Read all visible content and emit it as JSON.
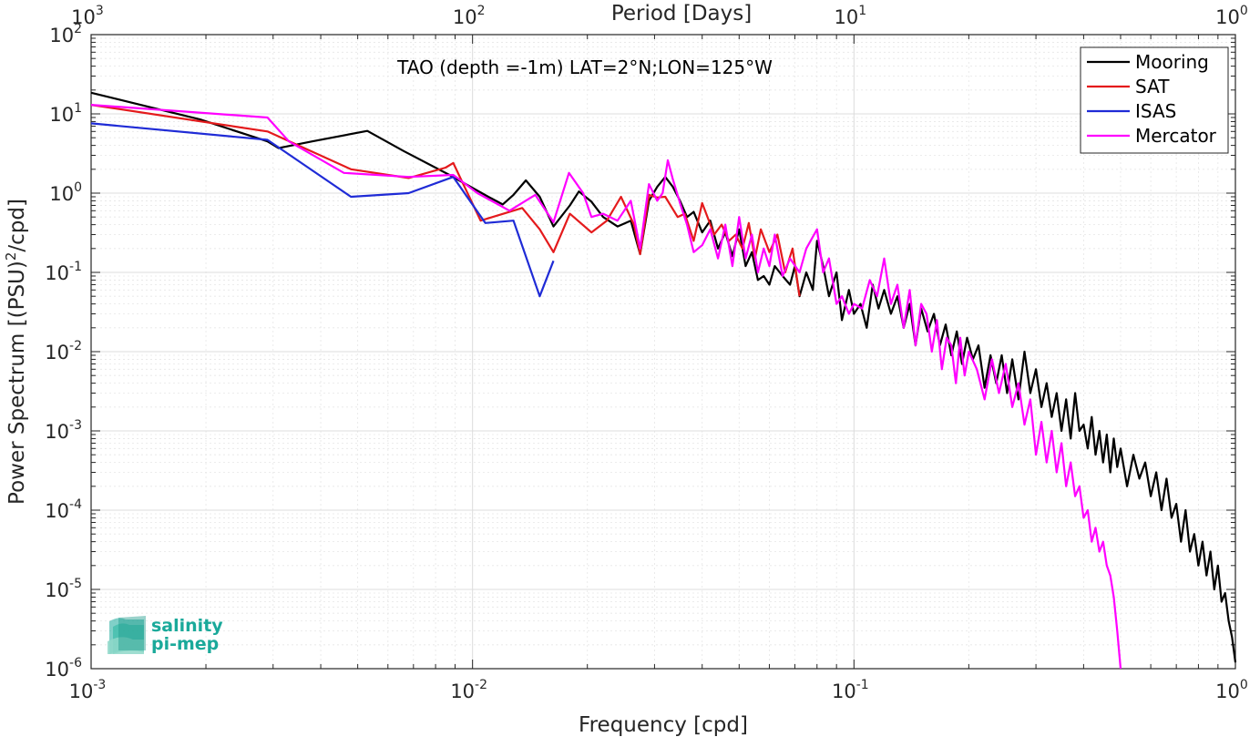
{
  "chart_data": {
    "type": "line",
    "title": "TAO (depth =-1m) LAT=2°N;LON=125°W",
    "xlabel": "Frequency [cpd]",
    "ylabel": "Power Spectrum [(PSU)²/cpd]",
    "ylabel_parts": {
      "main": "Power Spectrum [(PSU)",
      "sup": "2",
      "tail": "/cpd]"
    },
    "top_xlabel": "Period [Days]",
    "xscale": "log",
    "yscale": "log",
    "xlim": [
      0.001,
      1
    ],
    "ylim": [
      1e-06,
      100
    ],
    "x_ticks": [
      {
        "value": 0.001,
        "base": "10",
        "exp": "-3"
      },
      {
        "value": 0.01,
        "base": "10",
        "exp": "-2"
      },
      {
        "value": 0.1,
        "base": "10",
        "exp": "-1"
      },
      {
        "value": 1,
        "base": "10",
        "exp": "0"
      }
    ],
    "top_ticks": [
      {
        "value": 0.001,
        "base": "10",
        "exp": "3"
      },
      {
        "value": 0.01,
        "base": "10",
        "exp": "2"
      },
      {
        "value": 0.1,
        "base": "10",
        "exp": "1"
      },
      {
        "value": 1,
        "base": "10",
        "exp": "0"
      }
    ],
    "y_ticks": [
      {
        "value": 100,
        "base": "10",
        "exp": "2"
      },
      {
        "value": 10,
        "base": "10",
        "exp": "1"
      },
      {
        "value": 1,
        "base": "10",
        "exp": "0"
      },
      {
        "value": 0.1,
        "base": "10",
        "exp": "-1"
      },
      {
        "value": 0.01,
        "base": "10",
        "exp": "-2"
      },
      {
        "value": 0.001,
        "base": "10",
        "exp": "-3"
      },
      {
        "value": 0.0001,
        "base": "10",
        "exp": "-4"
      },
      {
        "value": 1e-05,
        "base": "10",
        "exp": "-5"
      },
      {
        "value": 1e-06,
        "base": "10",
        "exp": "-6"
      }
    ],
    "grid": true,
    "minor_grid": true,
    "legend_position": "top-right",
    "series": [
      {
        "name": "Mooring",
        "color": "#000000",
        "points": [
          [
            0.001,
            18.5
          ],
          [
            0.00193,
            8.5
          ],
          [
            0.0029,
            4.5
          ],
          [
            0.0031,
            3.7
          ],
          [
            0.0038,
            4.5
          ],
          [
            0.0053,
            6.1
          ],
          [
            0.0066,
            3.4
          ],
          [
            0.0087,
            1.7
          ],
          [
            0.011,
            0.9
          ],
          [
            0.012,
            0.72
          ],
          [
            0.0128,
            0.95
          ],
          [
            0.0138,
            1.45
          ],
          [
            0.015,
            0.9
          ],
          [
            0.0163,
            0.38
          ],
          [
            0.018,
            0.7
          ],
          [
            0.019,
            1.05
          ],
          [
            0.0205,
            0.78
          ],
          [
            0.022,
            0.5
          ],
          [
            0.024,
            0.38
          ],
          [
            0.026,
            0.45
          ],
          [
            0.0275,
            0.17
          ],
          [
            0.029,
            0.8
          ],
          [
            0.0305,
            1.2
          ],
          [
            0.032,
            1.6
          ],
          [
            0.0335,
            1.2
          ],
          [
            0.035,
            0.8
          ],
          [
            0.0365,
            0.5
          ],
          [
            0.038,
            0.58
          ],
          [
            0.04,
            0.32
          ],
          [
            0.042,
            0.45
          ],
          [
            0.044,
            0.2
          ],
          [
            0.046,
            0.32
          ],
          [
            0.048,
            0.16
          ],
          [
            0.05,
            0.35
          ],
          [
            0.052,
            0.12
          ],
          [
            0.054,
            0.18
          ],
          [
            0.056,
            0.08
          ],
          [
            0.058,
            0.09
          ],
          [
            0.06,
            0.07
          ],
          [
            0.062,
            0.12
          ],
          [
            0.065,
            0.09
          ],
          [
            0.068,
            0.07
          ],
          [
            0.07,
            0.12
          ],
          [
            0.072,
            0.05
          ],
          [
            0.075,
            0.1
          ],
          [
            0.078,
            0.06
          ],
          [
            0.08,
            0.25
          ],
          [
            0.083,
            0.12
          ],
          [
            0.086,
            0.05
          ],
          [
            0.09,
            0.1
          ],
          [
            0.093,
            0.025
          ],
          [
            0.097,
            0.06
          ],
          [
            0.1,
            0.03
          ],
          [
            0.104,
            0.04
          ],
          [
            0.108,
            0.02
          ],
          [
            0.112,
            0.07
          ],
          [
            0.116,
            0.035
          ],
          [
            0.12,
            0.06
          ],
          [
            0.125,
            0.03
          ],
          [
            0.13,
            0.05
          ],
          [
            0.135,
            0.02
          ],
          [
            0.14,
            0.04
          ],
          [
            0.145,
            0.012
          ],
          [
            0.15,
            0.035
          ],
          [
            0.156,
            0.018
          ],
          [
            0.162,
            0.03
          ],
          [
            0.168,
            0.012
          ],
          [
            0.174,
            0.022
          ],
          [
            0.18,
            0.009
          ],
          [
            0.186,
            0.018
          ],
          [
            0.192,
            0.007
          ],
          [
            0.198,
            0.015
          ],
          [
            0.205,
            0.008
          ],
          [
            0.212,
            0.012
          ],
          [
            0.22,
            0.0035
          ],
          [
            0.228,
            0.009
          ],
          [
            0.236,
            0.004
          ],
          [
            0.244,
            0.009
          ],
          [
            0.252,
            0.003
          ],
          [
            0.26,
            0.008
          ],
          [
            0.27,
            0.0025
          ],
          [
            0.28,
            0.01
          ],
          [
            0.29,
            0.003
          ],
          [
            0.3,
            0.006
          ],
          [
            0.31,
            0.002
          ],
          [
            0.32,
            0.004
          ],
          [
            0.33,
            0.0015
          ],
          [
            0.34,
            0.003
          ],
          [
            0.35,
            0.001
          ],
          [
            0.36,
            0.0025
          ],
          [
            0.37,
            0.0008
          ],
          [
            0.38,
            0.003
          ],
          [
            0.39,
            0.001
          ],
          [
            0.4,
            0.0012
          ],
          [
            0.41,
            0.0006
          ],
          [
            0.42,
            0.0015
          ],
          [
            0.43,
            0.0005
          ],
          [
            0.44,
            0.001
          ],
          [
            0.45,
            0.0004
          ],
          [
            0.46,
            0.0009
          ],
          [
            0.47,
            0.0003
          ],
          [
            0.48,
            0.0008
          ],
          [
            0.49,
            0.00035
          ],
          [
            0.5,
            0.0006
          ],
          [
            0.52,
            0.0002
          ],
          [
            0.54,
            0.0005
          ],
          [
            0.56,
            0.00025
          ],
          [
            0.58,
            0.0004
          ],
          [
            0.6,
            0.00015
          ],
          [
            0.62,
            0.0003
          ],
          [
            0.64,
            0.0001
          ],
          [
            0.66,
            0.00025
          ],
          [
            0.68,
            8e-05
          ],
          [
            0.7,
            0.00012
          ],
          [
            0.72,
            4e-05
          ],
          [
            0.74,
            0.0001
          ],
          [
            0.76,
            3e-05
          ],
          [
            0.78,
            5e-05
          ],
          [
            0.8,
            2e-05
          ],
          [
            0.82,
            4e-05
          ],
          [
            0.84,
            1.5e-05
          ],
          [
            0.86,
            3e-05
          ],
          [
            0.88,
            1e-05
          ],
          [
            0.9,
            2e-05
          ],
          [
            0.92,
            7e-06
          ],
          [
            0.94,
            9e-06
          ],
          [
            0.96,
            4e-06
          ],
          [
            0.98,
            2.5e-06
          ],
          [
            1.0,
            1.2e-06
          ]
        ]
      },
      {
        "name": "SAT",
        "color": "#e41a1c",
        "points": [
          [
            0.001,
            13.0
          ],
          [
            0.0029,
            6.0
          ],
          [
            0.0048,
            2.0
          ],
          [
            0.0068,
            1.55
          ],
          [
            0.0085,
            2.1
          ],
          [
            0.0089,
            2.4
          ],
          [
            0.0105,
            0.45
          ],
          [
            0.0135,
            0.65
          ],
          [
            0.015,
            0.35
          ],
          [
            0.0163,
            0.18
          ],
          [
            0.018,
            0.55
          ],
          [
            0.0205,
            0.32
          ],
          [
            0.0225,
            0.45
          ],
          [
            0.0245,
            0.9
          ],
          [
            0.0265,
            0.4
          ],
          [
            0.0275,
            0.17
          ],
          [
            0.029,
            0.95
          ],
          [
            0.0305,
            0.88
          ],
          [
            0.032,
            0.9
          ],
          [
            0.0345,
            0.5
          ],
          [
            0.036,
            0.55
          ],
          [
            0.038,
            0.25
          ],
          [
            0.04,
            0.75
          ],
          [
            0.043,
            0.3
          ],
          [
            0.045,
            0.4
          ],
          [
            0.047,
            0.25
          ],
          [
            0.049,
            0.3
          ],
          [
            0.051,
            0.2
          ],
          [
            0.053,
            0.42
          ],
          [
            0.055,
            0.15
          ],
          [
            0.057,
            0.35
          ],
          [
            0.06,
            0.18
          ],
          [
            0.063,
            0.3
          ],
          [
            0.066,
            0.1
          ],
          [
            0.069,
            0.2
          ],
          [
            0.072,
            0.05
          ]
        ]
      },
      {
        "name": "ISAS",
        "color": "#1f2bd6",
        "points": [
          [
            0.001,
            7.6
          ],
          [
            0.0029,
            4.7
          ],
          [
            0.0048,
            0.9
          ],
          [
            0.0068,
            1.0
          ],
          [
            0.0089,
            1.6
          ],
          [
            0.0108,
            0.42
          ],
          [
            0.0128,
            0.45
          ],
          [
            0.015,
            0.05
          ],
          [
            0.0163,
            0.14
          ]
        ]
      },
      {
        "name": "Mercator",
        "color": "#ff00ff",
        "points": [
          [
            0.001,
            13.0
          ],
          [
            0.0029,
            9.0
          ],
          [
            0.0033,
            4.5
          ],
          [
            0.0046,
            1.8
          ],
          [
            0.0068,
            1.6
          ],
          [
            0.0089,
            1.7
          ],
          [
            0.0103,
            1.0
          ],
          [
            0.0118,
            0.7
          ],
          [
            0.0125,
            0.6
          ],
          [
            0.0146,
            0.95
          ],
          [
            0.0163,
            0.43
          ],
          [
            0.0179,
            1.8
          ],
          [
            0.0195,
            1.0
          ],
          [
            0.0205,
            0.5
          ],
          [
            0.022,
            0.55
          ],
          [
            0.024,
            0.45
          ],
          [
            0.026,
            0.8
          ],
          [
            0.0275,
            0.2
          ],
          [
            0.029,
            1.3
          ],
          [
            0.0305,
            0.8
          ],
          [
            0.0315,
            1.0
          ],
          [
            0.0325,
            2.6
          ],
          [
            0.0335,
            1.5
          ],
          [
            0.035,
            0.75
          ],
          [
            0.0365,
            0.4
          ],
          [
            0.038,
            0.18
          ],
          [
            0.04,
            0.22
          ],
          [
            0.042,
            0.35
          ],
          [
            0.044,
            0.15
          ],
          [
            0.046,
            0.4
          ],
          [
            0.048,
            0.12
          ],
          [
            0.05,
            0.5
          ],
          [
            0.052,
            0.15
          ],
          [
            0.054,
            0.3
          ],
          [
            0.056,
            0.1
          ],
          [
            0.058,
            0.2
          ],
          [
            0.06,
            0.12
          ],
          [
            0.062,
            0.3
          ],
          [
            0.065,
            0.09
          ],
          [
            0.068,
            0.15
          ],
          [
            0.072,
            0.1
          ],
          [
            0.075,
            0.2
          ],
          [
            0.08,
            0.35
          ],
          [
            0.083,
            0.1
          ],
          [
            0.086,
            0.15
          ],
          [
            0.09,
            0.04
          ],
          [
            0.093,
            0.05
          ],
          [
            0.097,
            0.03
          ],
          [
            0.1,
            0.04
          ],
          [
            0.105,
            0.035
          ],
          [
            0.11,
            0.08
          ],
          [
            0.115,
            0.05
          ],
          [
            0.12,
            0.15
          ],
          [
            0.125,
            0.04
          ],
          [
            0.13,
            0.07
          ],
          [
            0.135,
            0.02
          ],
          [
            0.14,
            0.06
          ],
          [
            0.145,
            0.012
          ],
          [
            0.15,
            0.04
          ],
          [
            0.155,
            0.03
          ],
          [
            0.16,
            0.01
          ],
          [
            0.165,
            0.025
          ],
          [
            0.17,
            0.006
          ],
          [
            0.175,
            0.015
          ],
          [
            0.18,
            0.012
          ],
          [
            0.185,
            0.004
          ],
          [
            0.19,
            0.015
          ],
          [
            0.195,
            0.005
          ],
          [
            0.2,
            0.01
          ],
          [
            0.21,
            0.006
          ],
          [
            0.22,
            0.0025
          ],
          [
            0.23,
            0.008
          ],
          [
            0.24,
            0.003
          ],
          [
            0.25,
            0.007
          ],
          [
            0.26,
            0.002
          ],
          [
            0.27,
            0.004
          ],
          [
            0.28,
            0.0012
          ],
          [
            0.29,
            0.0025
          ],
          [
            0.3,
            0.0005
          ],
          [
            0.31,
            0.0013
          ],
          [
            0.32,
            0.0004
          ],
          [
            0.33,
            0.001
          ],
          [
            0.34,
            0.0003
          ],
          [
            0.35,
            0.0007
          ],
          [
            0.36,
            0.0002
          ],
          [
            0.37,
            0.0004
          ],
          [
            0.38,
            0.00015
          ],
          [
            0.39,
            0.0002
          ],
          [
            0.4,
            8e-05
          ],
          [
            0.41,
            0.0001
          ],
          [
            0.42,
            4e-05
          ],
          [
            0.43,
            6e-05
          ],
          [
            0.44,
            3e-05
          ],
          [
            0.45,
            4e-05
          ],
          [
            0.46,
            2e-05
          ],
          [
            0.47,
            1.5e-05
          ],
          [
            0.48,
            8e-06
          ],
          [
            0.49,
            3e-06
          ],
          [
            0.5,
            1e-06
          ]
        ]
      }
    ]
  },
  "logo": {
    "line1": "salinity",
    "line2": "pi-mep"
  }
}
